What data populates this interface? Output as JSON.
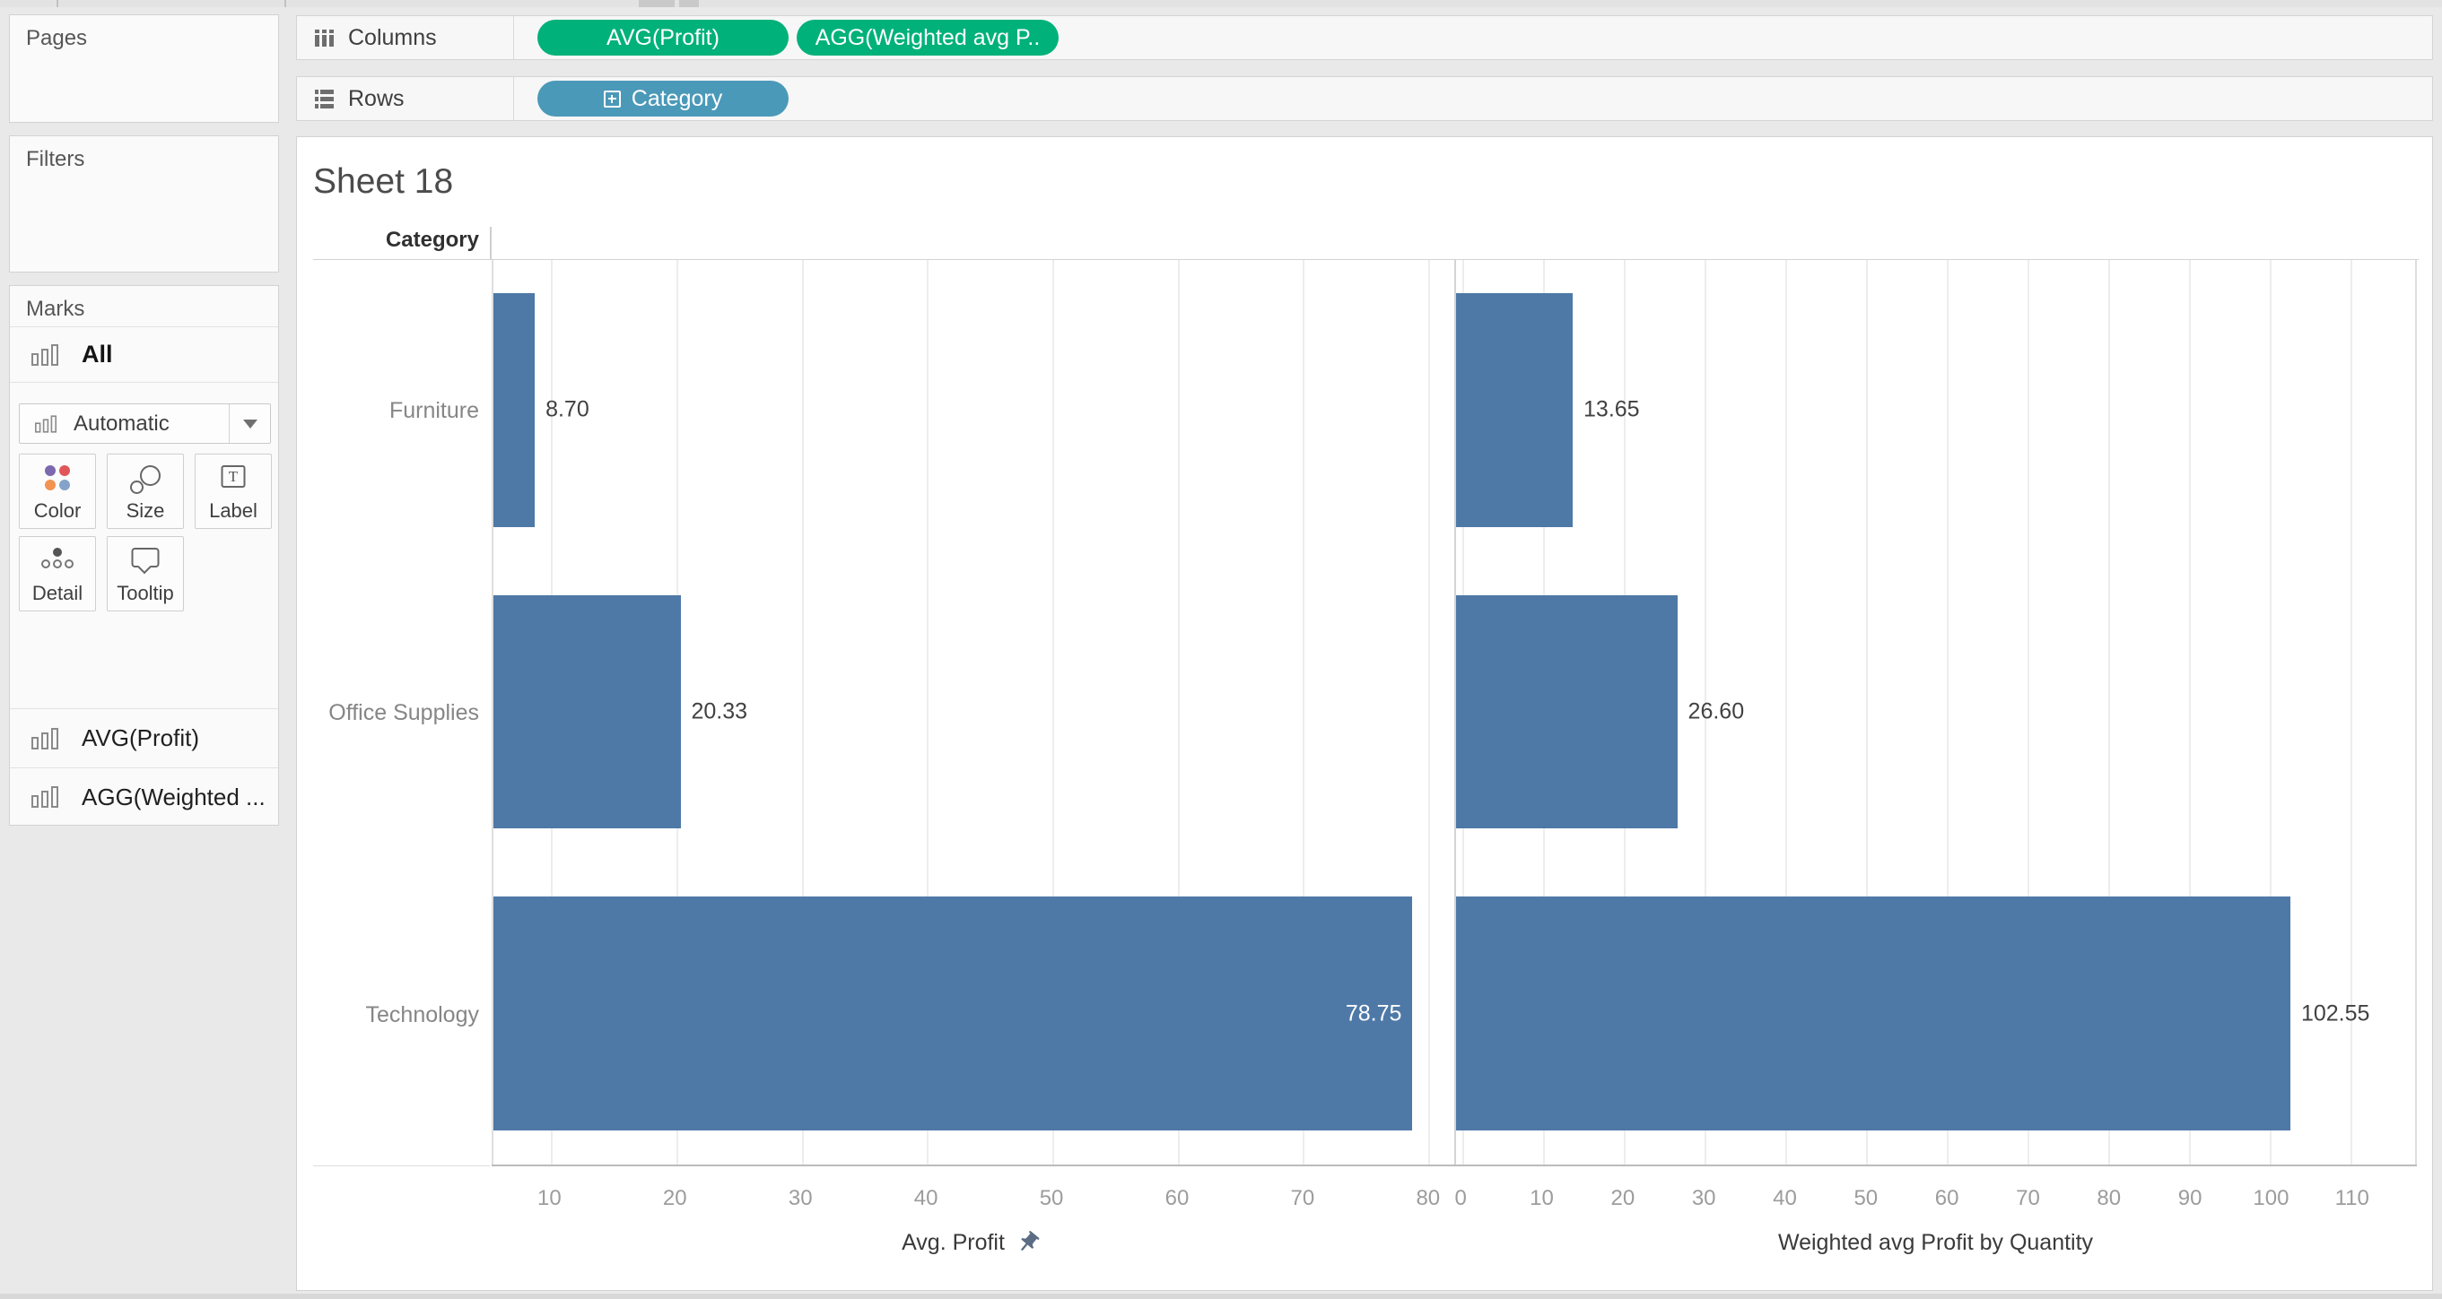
{
  "app": {
    "window_bg": "#e9e9e9",
    "pill_green": "#00b17a",
    "pill_blue": "#4b99b9",
    "bar_color": "#4e79a7"
  },
  "shelves": {
    "columns": {
      "label": "Columns",
      "pills": [
        "AVG(Profit)",
        "AGG(Weighted avg P.."
      ]
    },
    "rows": {
      "label": "Rows",
      "pills": [
        "Category"
      ]
    }
  },
  "sidebar": {
    "pages_label": "Pages",
    "filters_label": "Filters",
    "marks_label": "Marks",
    "marks_card": {
      "all_label": "All",
      "mark_type_selector": "Automatic",
      "buttons": [
        "Color",
        "Size",
        "Label",
        "Detail",
        "Tooltip"
      ],
      "measure_cards": [
        "AVG(Profit)",
        "AGG(Weighted ..."
      ]
    }
  },
  "sheet": {
    "title": "Sheet 18",
    "row_header": "Category",
    "categories": [
      "Furniture",
      "Office Supplies",
      "Technology"
    ]
  },
  "chart_data": {
    "type": "bar",
    "orientation": "horizontal",
    "title": "Sheet 18",
    "categories": [
      "Furniture",
      "Office Supplies",
      "Technology"
    ],
    "series": [
      {
        "name": "Avg. Profit",
        "values": [
          8.7,
          20.33,
          78.75
        ]
      },
      {
        "name": "Weighted avg Profit by Quantity",
        "values": [
          13.65,
          26.6,
          102.55
        ]
      }
    ],
    "gridlines": true,
    "legend": "none",
    "panels": [
      {
        "axis_title": "Avg. Profit",
        "pinned": true,
        "x_min": 5.4,
        "x_max": 81.8,
        "ticks": [
          10,
          20,
          30,
          40,
          50,
          60,
          70,
          80
        ],
        "values": [
          8.7,
          20.33,
          78.75
        ],
        "labels": [
          "8.70",
          "20.33",
          "78.75"
        ],
        "label_inside": [
          false,
          false,
          true
        ]
      },
      {
        "axis_title": "Weighted avg Profit by Quantity",
        "pinned": false,
        "x_min": -0.8,
        "x_max": 118.0,
        "ticks": [
          0,
          10,
          20,
          30,
          40,
          50,
          60,
          70,
          80,
          90,
          100,
          110
        ],
        "values": [
          13.65,
          26.6,
          102.55
        ],
        "labels": [
          "13.65",
          "26.60",
          "102.55"
        ],
        "label_inside": [
          false,
          false,
          false
        ]
      }
    ]
  }
}
